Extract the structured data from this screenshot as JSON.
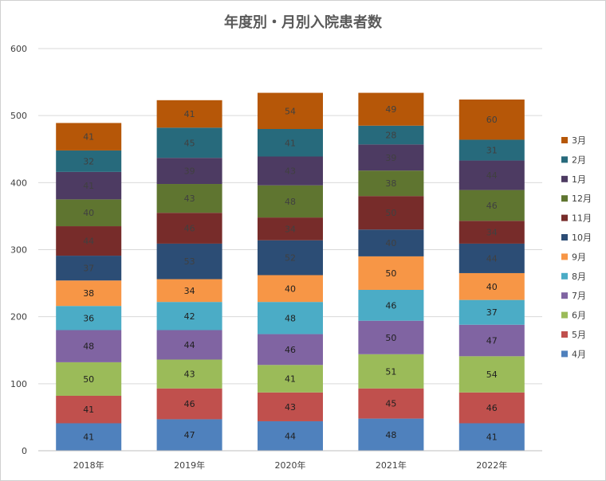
{
  "chart_data": {
    "type": "bar",
    "stacked": true,
    "title": "年度別・月別入院患者数",
    "xlabel": "",
    "ylabel": "",
    "ylim": [
      0,
      600
    ],
    "yticks": [
      0,
      100,
      200,
      300,
      400,
      500,
      600
    ],
    "grid": true,
    "legend_position": "right",
    "categories": [
      "2018年",
      "2019年",
      "2020年",
      "2021年",
      "2022年"
    ],
    "series": [
      {
        "name": "4月",
        "color": "#4f81bd",
        "label_color": "#1f1f1f",
        "values": [
          41,
          47,
          44,
          48,
          41
        ]
      },
      {
        "name": "5月",
        "color": "#c0504d",
        "label_color": "#1f1f1f",
        "values": [
          41,
          46,
          43,
          45,
          46
        ]
      },
      {
        "name": "6月",
        "color": "#9bbb59",
        "label_color": "#1f1f1f",
        "values": [
          50,
          43,
          41,
          51,
          54
        ]
      },
      {
        "name": "7月",
        "color": "#8064a2",
        "label_color": "#1f1f1f",
        "values": [
          48,
          44,
          46,
          50,
          47
        ]
      },
      {
        "name": "8月",
        "color": "#4bacc6",
        "label_color": "#1f1f1f",
        "values": [
          36,
          42,
          48,
          46,
          37
        ]
      },
      {
        "name": "9月",
        "color": "#f79646",
        "label_color": "#1f1f1f",
        "values": [
          38,
          34,
          40,
          50,
          40
        ]
      },
      {
        "name": "10月",
        "color": "#2c4d75",
        "label_color": "#404040",
        "values": [
          37,
          53,
          52,
          40,
          44
        ]
      },
      {
        "name": "11月",
        "color": "#772c2a",
        "label_color": "#404040",
        "values": [
          44,
          46,
          34,
          50,
          34
        ]
      },
      {
        "name": "12月",
        "color": "#5f7530",
        "label_color": "#404040",
        "values": [
          40,
          43,
          48,
          38,
          46
        ]
      },
      {
        "name": "1月",
        "color": "#4d3b62",
        "label_color": "#404040",
        "values": [
          41,
          39,
          43,
          39,
          44
        ]
      },
      {
        "name": "2月",
        "color": "#276a7c",
        "label_color": "#404040",
        "values": [
          32,
          45,
          41,
          28,
          31
        ]
      },
      {
        "name": "3月",
        "color": "#b65708",
        "label_color": "#404040",
        "values": [
          41,
          41,
          54,
          49,
          60
        ]
      }
    ]
  }
}
